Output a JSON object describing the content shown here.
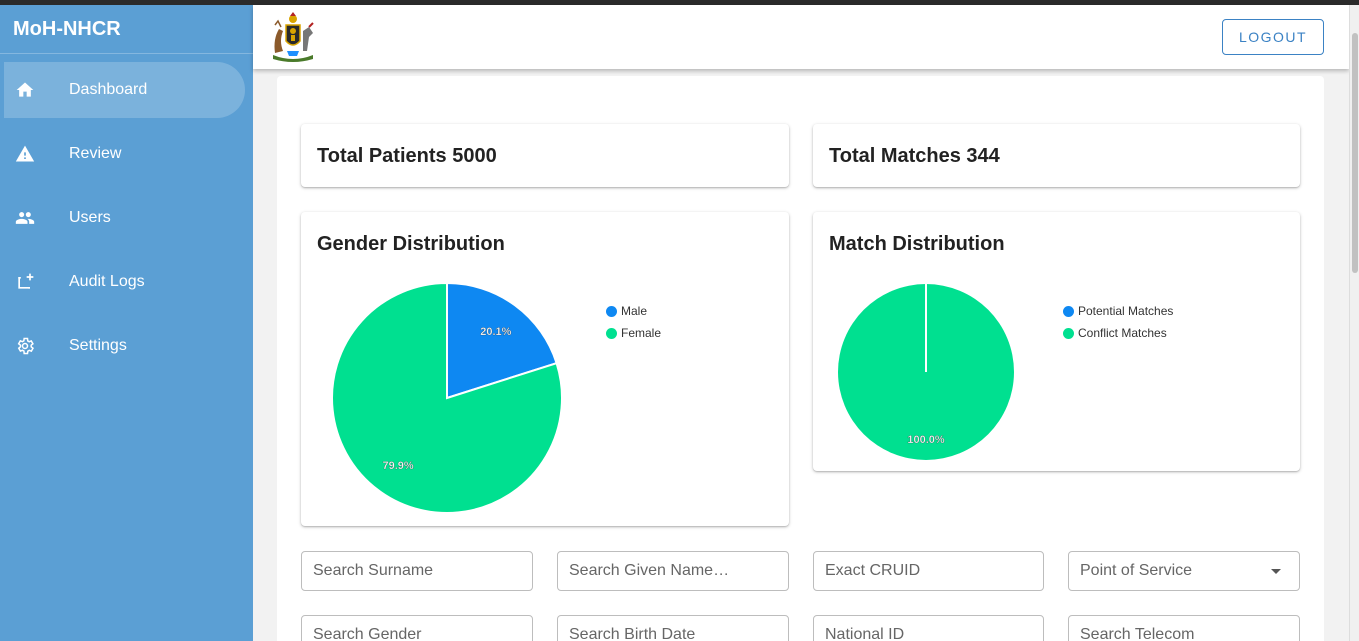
{
  "app": {
    "title": "MoH-NHCR"
  },
  "sidebar": {
    "items": [
      {
        "label": "Dashboard",
        "icon": "home-icon",
        "active": true
      },
      {
        "label": "Review",
        "icon": "warning-icon"
      },
      {
        "label": "Users",
        "icon": "people-icon"
      },
      {
        "label": "Audit Logs",
        "icon": "add-to-queue-icon"
      },
      {
        "label": "Settings",
        "icon": "gear-icon"
      }
    ]
  },
  "header": {
    "logout_label": "LOGOUT",
    "logo_icon": "coat-of-arms-icon"
  },
  "stats": {
    "total_patients": "Total Patients 5000",
    "total_matches": "Total Matches 344"
  },
  "charts": {
    "gender_title": "Gender Distribution",
    "match_title": "Match Distribution"
  },
  "chart_data": [
    {
      "type": "pie",
      "title": "Gender Distribution",
      "legend_position": "right",
      "categories": [
        "Male",
        "Female"
      ],
      "values": [
        20.1,
        79.9
      ],
      "labels": [
        "20.1%",
        "79.9%"
      ],
      "colors": [
        "#0e88f2",
        "#00e090"
      ]
    },
    {
      "type": "pie",
      "title": "Match Distribution",
      "legend_position": "right",
      "categories": [
        "Potential Matches",
        "Conflict Matches"
      ],
      "values": [
        0,
        100
      ],
      "labels": [
        "",
        "100.0%"
      ],
      "colors": [
        "#0e88f2",
        "#00e090"
      ]
    }
  ],
  "search": {
    "surname": "Search Surname",
    "given_name": "Search Given Name…",
    "cruid": "Exact CRUID",
    "point_of_service": "Point of Service",
    "gender": "Search Gender",
    "birth_date": "Search Birth Date",
    "national_id": "National ID",
    "telecom": "Search Telecom"
  },
  "colors": {
    "sidebar": "#5b9fd4",
    "accent": "#3b82c4",
    "male": "#0e88f2",
    "female": "#00e090"
  }
}
